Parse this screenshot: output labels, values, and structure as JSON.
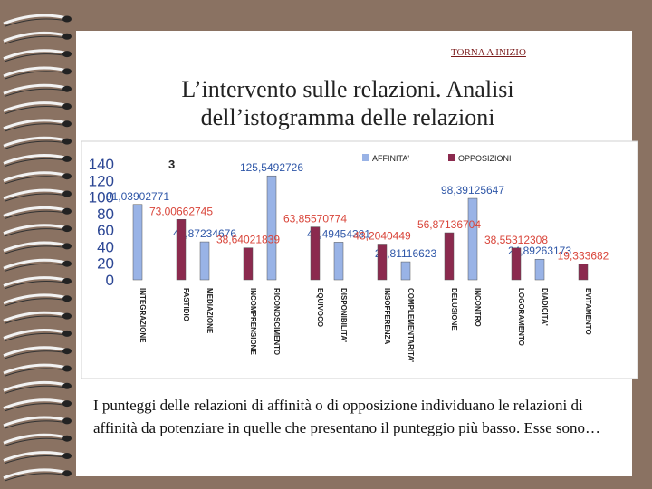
{
  "link": "TORNA A INIZIO",
  "title_lines": [
    "L’intervento sulle relazioni. Analisi",
    "dell’istogramma delle relazioni"
  ],
  "body": "I punteggi delle relazioni di affinità o di opposizione individuano le relazioni di affinità da potenziare in quelle che presentano il punteggio più basso. Esse sono…",
  "chart_data": {
    "type": "bar",
    "annotation": "3",
    "categories": [
      "INTEGRAZIONE",
      "FASTIDIO",
      "MEDIAZIONE",
      "INCOMPRENSIONE",
      "RICONOSCIMENTO",
      "EQUIVOCO",
      "DISPONIBILITA'",
      "INSOFFERENZA",
      "COMPLEMENTARITA'",
      "DELUSIONE",
      "INCONTRO",
      "LOGORAMENTO",
      "DIADICITA'",
      "EVITAMENTO"
    ],
    "series": [
      {
        "name": "AFFINITA'",
        "color": "#99b3e6",
        "label_color": "#2f57a8",
        "values": [
          91.03902771,
          null,
          45.87234676,
          null,
          125.5492726,
          null,
          45.49454381,
          null,
          21.81116623,
          null,
          98.39125647,
          null,
          24.89263173,
          null
        ],
        "value_labels": [
          "91,03902771",
          null,
          "45,87234676",
          null,
          "125,5492726",
          null,
          "45,49454381",
          null,
          "21,81116623",
          null,
          "98,39125647",
          null,
          "24,89263173",
          null
        ]
      },
      {
        "name": "OPPOSIZIONI",
        "color": "#8b2a4e",
        "label_color": "#d9453a",
        "values": [
          null,
          73.00662745,
          null,
          38.64021839,
          null,
          63.85570774,
          null,
          43.2040449,
          null,
          56.87136704,
          null,
          38.55312308,
          null,
          19.333682
        ],
        "value_labels": [
          null,
          "73,00662745",
          null,
          "38,64021839",
          null,
          "63,85570774",
          null,
          "43,2040449",
          null,
          "56,87136704",
          null,
          "38,55312308",
          null,
          "19,333682"
        ]
      }
    ],
    "ylim": [
      0,
      140
    ],
    "yticks": [
      0,
      20,
      40,
      60,
      80,
      100,
      120,
      140
    ],
    "grid": false
  }
}
